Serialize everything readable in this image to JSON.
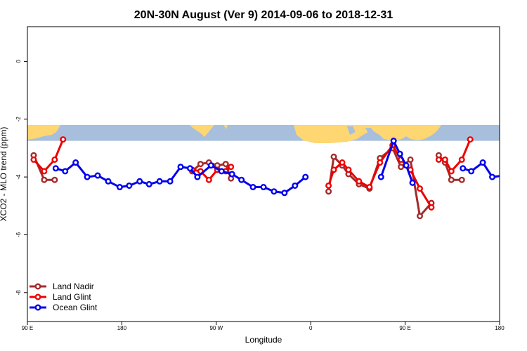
{
  "chart_data": {
    "type": "line",
    "title": "20N-30N August (Ver 9)   2014-09-06 to 2018-12-31",
    "xlabel": "Longitude",
    "ylabel": "XCO2 - MLO trend (ppm)",
    "xlim": [
      90,
      540
    ],
    "ylim": [
      -9,
      1.2
    ],
    "x_ticks": [
      {
        "value": 90,
        "label": "90 E"
      },
      {
        "value": 180,
        "label": "180"
      },
      {
        "value": 270,
        "label": "90 W"
      },
      {
        "value": 360,
        "label": "0"
      },
      {
        "value": 450,
        "label": "90 E"
      },
      {
        "value": 540,
        "label": "180"
      }
    ],
    "y_ticks": [
      {
        "value": 0,
        "label": "0"
      },
      {
        "value": -2,
        "label": "-2"
      },
      {
        "value": -4,
        "label": "-4"
      },
      {
        "value": -6,
        "label": "-6"
      },
      {
        "value": -8,
        "label": "-8"
      }
    ],
    "map_band": {
      "y_top": -2.2,
      "y_bottom": -2.75,
      "ocean_color": "#a7bfdd",
      "land_color": "#fed672"
    },
    "legend": {
      "position": "bottom-left"
    },
    "series": [
      {
        "name": "Land Nadir",
        "color": "#a52a2a",
        "segments": [
          [
            [
              96,
              -3.25
            ],
            [
              106,
              -4.1
            ],
            [
              116,
              -4.1
            ]
          ],
          [
            [
              247,
              -3.8
            ],
            [
              255,
              -3.55
            ],
            [
              263,
              -3.5
            ],
            [
              271,
              -3.6
            ],
            [
              279,
              -3.55
            ],
            [
              284,
              -4.05
            ]
          ],
          [
            [
              377,
              -4.5
            ],
            [
              382,
              -3.3
            ],
            [
              390,
              -3.6
            ],
            [
              396,
              -3.9
            ],
            [
              406,
              -4.25
            ],
            [
              416,
              -4.4
            ],
            [
              426,
              -3.35
            ],
            [
              438,
              -3.0
            ],
            [
              446,
              -3.65
            ],
            [
              455,
              -3.4
            ],
            [
              464,
              -5.35
            ],
            [
              475,
              -4.9
            ]
          ],
          [
            [
              482,
              -3.25
            ],
            [
              488,
              -3.5
            ],
            [
              494,
              -4.1
            ],
            [
              504,
              -4.1
            ]
          ]
        ]
      },
      {
        "name": "Land Glint",
        "color": "#ee0000",
        "segments": [
          [
            [
              96,
              -3.4
            ],
            [
              106,
              -3.8
            ],
            [
              116,
              -3.4
            ],
            [
              124,
              -2.7
            ]
          ],
          [
            [
              247,
              -3.75
            ],
            [
              255,
              -3.8
            ],
            [
              263,
              -4.1
            ],
            [
              271,
              -3.75
            ],
            [
              279,
              -3.8
            ],
            [
              284,
              -3.65
            ]
          ],
          [
            [
              377,
              -4.3
            ],
            [
              382,
              -3.75
            ],
            [
              390,
              -3.5
            ],
            [
              396,
              -3.75
            ],
            [
              406,
              -4.15
            ],
            [
              416,
              -4.35
            ],
            [
              426,
              -3.5
            ],
            [
              438,
              -2.9
            ],
            [
              446,
              -3.4
            ],
            [
              455,
              -3.75
            ],
            [
              464,
              -4.4
            ],
            [
              475,
              -5.05
            ]
          ],
          [
            [
              482,
              -3.4
            ],
            [
              488,
              -3.4
            ],
            [
              494,
              -3.8
            ],
            [
              504,
              -3.4
            ],
            [
              512,
              -2.7
            ]
          ]
        ]
      },
      {
        "name": "Ocean Glint",
        "color": "#0000ee",
        "segments": [
          [
            [
              117,
              -3.7
            ],
            [
              126,
              -3.8
            ],
            [
              136,
              -3.5
            ],
            [
              147,
              -4.0
            ],
            [
              157,
              -3.95
            ],
            [
              167,
              -4.15
            ],
            [
              178,
              -4.35
            ],
            [
              187,
              -4.3
            ],
            [
              197,
              -4.15
            ],
            [
              206,
              -4.25
            ],
            [
              216,
              -4.15
            ],
            [
              226,
              -4.15
            ],
            [
              236,
              -3.65
            ],
            [
              245,
              -3.7
            ],
            [
              252,
              -4.0
            ],
            [
              265,
              -3.6
            ],
            [
              275,
              -3.8
            ],
            [
              285,
              -3.9
            ],
            [
              294,
              -4.1
            ],
            [
              305,
              -4.35
            ],
            [
              315,
              -4.35
            ],
            [
              325,
              -4.5
            ],
            [
              335,
              -4.55
            ],
            [
              345,
              -4.3
            ],
            [
              355,
              -4.0
            ]
          ],
          [
            [
              427,
              -4.0
            ],
            [
              439,
              -2.75
            ],
            [
              445,
              -3.2
            ],
            [
              451,
              -3.6
            ],
            [
              457,
              -4.2
            ]
          ],
          [
            [
              505,
              -3.7
            ],
            [
              513,
              -3.8
            ],
            [
              524,
              -3.5
            ],
            [
              533,
              -4.0
            ],
            [
              544,
              -3.95
            ],
            [
              553,
              -4.15
            ],
            [
              565,
              -4.35
            ]
          ]
        ]
      }
    ]
  }
}
